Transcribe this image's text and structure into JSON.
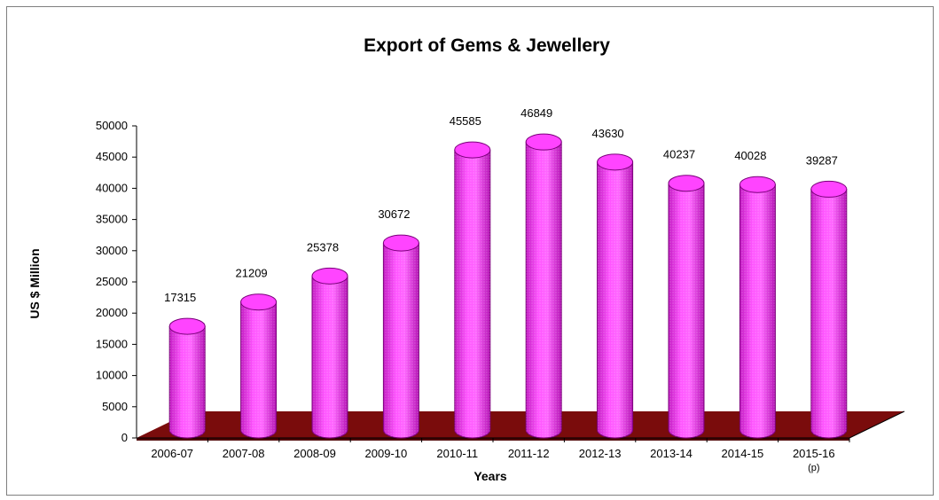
{
  "chart_data": {
    "type": "bar",
    "title": "Export of Gems & Jewellery",
    "xlabel": "Years",
    "ylabel": "US $ Million",
    "categories": [
      "2006-07",
      "2007-08",
      "2008-09",
      "2009-10",
      "2010-11",
      "2011-12",
      "2012-13",
      "2013-14",
      "2014-15",
      "2015-16"
    ],
    "category_notes": [
      "",
      "",
      "",
      "",
      "",
      "",
      "",
      "",
      "",
      "(p)"
    ],
    "values": [
      17315,
      21209,
      25378,
      30672,
      45585,
      46849,
      43630,
      40237,
      40028,
      39287
    ],
    "data_labels": [
      "17315",
      "21209",
      "25378",
      "30672",
      "45585",
      "46849",
      "43630",
      "40237",
      "40028",
      "39287"
    ],
    "ylim": [
      0,
      50000
    ],
    "yticks": [
      "0",
      "5000",
      "10000",
      "15000",
      "20000",
      "25000",
      "30000",
      "35000",
      "40000",
      "45000",
      "50000"
    ],
    "style": "3d-cylinder",
    "grid": false,
    "legend": "none",
    "colors": {
      "bar": "#ff44ff",
      "bar_dark": "#b000b0",
      "bar_light": "#ffb8ff",
      "floor": "#7a0c0c",
      "floor_dark": "#4d0505",
      "axis": "#000000"
    }
  }
}
